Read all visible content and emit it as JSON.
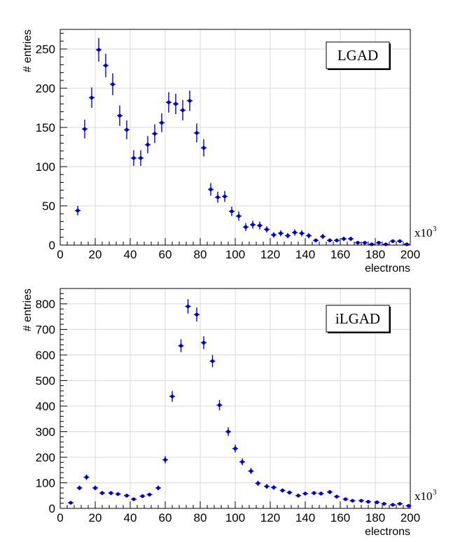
{
  "chart_data": [
    {
      "type": "scatter",
      "legend": "LGAD",
      "legend_position": "top-right",
      "xlabel": "electrons",
      "ylabel": "# entries",
      "x_multiplier_label": "x10",
      "x_multiplier_exp": "3",
      "xlim": [
        0,
        200
      ],
      "ylim": [
        0,
        275
      ],
      "x_ticks": [
        0,
        20,
        40,
        60,
        80,
        100,
        120,
        140,
        160,
        180,
        200
      ],
      "y_ticks": [
        0,
        50,
        100,
        150,
        200,
        250
      ],
      "grid": true,
      "marker_color": "#0000cc",
      "series": [
        {
          "x": [
            10,
            14,
            18,
            22,
            26,
            30,
            34,
            38,
            42,
            46,
            50,
            54,
            58,
            62,
            66,
            70,
            74,
            78,
            82,
            86,
            90,
            94,
            98,
            102,
            106,
            110,
            114,
            118,
            122,
            126,
            130,
            134,
            138,
            142,
            146,
            150,
            154,
            158,
            162,
            166,
            170,
            174,
            178,
            182,
            186,
            190,
            194,
            198
          ],
          "y": [
            44,
            148,
            188,
            249,
            229,
            205,
            165,
            147,
            111,
            111,
            128,
            142,
            156,
            182,
            180,
            172,
            184,
            143,
            124,
            71,
            61,
            62,
            43,
            37,
            23,
            26,
            25,
            20,
            13,
            15,
            12,
            16,
            15,
            12,
            6,
            11,
            6,
            6,
            8,
            8,
            3,
            3,
            1,
            3,
            1,
            5,
            5,
            1
          ],
          "yerr": [
            6,
            12,
            13,
            15,
            15,
            14,
            13,
            12,
            10,
            10,
            11,
            12,
            12,
            13,
            13,
            13,
            13,
            12,
            11,
            8,
            7,
            7,
            6,
            6,
            5,
            5,
            5,
            4,
            3.5,
            3.8,
            3.4,
            4,
            3.8,
            3.4,
            2.5,
            3.3,
            2.5,
            2.5,
            2.8,
            2.8,
            1.7,
            1.7,
            1,
            1.7,
            1,
            2.2,
            2.2,
            1
          ]
        }
      ]
    },
    {
      "type": "scatter",
      "legend": "iLGAD",
      "legend_position": "top-right",
      "xlabel": "electrons",
      "ylabel": "# entries",
      "x_multiplier_label": "x10",
      "x_multiplier_exp": "3",
      "xlim": [
        0,
        200
      ],
      "ylim": [
        0,
        860
      ],
      "x_ticks": [
        0,
        20,
        40,
        60,
        80,
        100,
        120,
        140,
        160,
        180,
        200
      ],
      "y_ticks": [
        0,
        100,
        200,
        300,
        400,
        500,
        600,
        700,
        800
      ],
      "grid": true,
      "marker_color": "#0000cc",
      "series": [
        {
          "x": [
            6,
            11,
            15,
            20,
            24,
            29,
            33,
            38,
            42,
            47,
            51,
            56,
            60,
            64,
            69,
            73,
            78,
            82,
            87,
            91,
            96,
            100,
            104,
            109,
            113,
            118,
            122,
            127,
            131,
            136,
            140,
            145,
            149,
            154,
            158,
            163,
            167,
            172,
            176,
            181,
            185,
            190,
            194,
            199
          ],
          "y": [
            22,
            80,
            122,
            80,
            60,
            60,
            56,
            50,
            36,
            48,
            54,
            80,
            190,
            438,
            636,
            790,
            758,
            648,
            576,
            404,
            300,
            234,
            182,
            146,
            98,
            86,
            82,
            70,
            62,
            50,
            58,
            60,
            58,
            64,
            46,
            36,
            30,
            30,
            26,
            24,
            18,
            14,
            18,
            10
          ],
          "yerr": [
            5,
            9,
            11,
            9,
            8,
            8,
            7.5,
            7,
            6,
            7,
            7.5,
            9,
            14,
            21,
            25,
            28,
            27.5,
            25,
            24,
            20,
            17,
            15,
            13.5,
            12,
            10,
            9.3,
            9,
            8.4,
            7.9,
            7,
            7.6,
            7.7,
            7.6,
            8,
            6.8,
            6,
            5.5,
            5.5,
            5.1,
            4.9,
            4.2,
            3.7,
            4.2,
            3.2
          ]
        }
      ]
    }
  ]
}
